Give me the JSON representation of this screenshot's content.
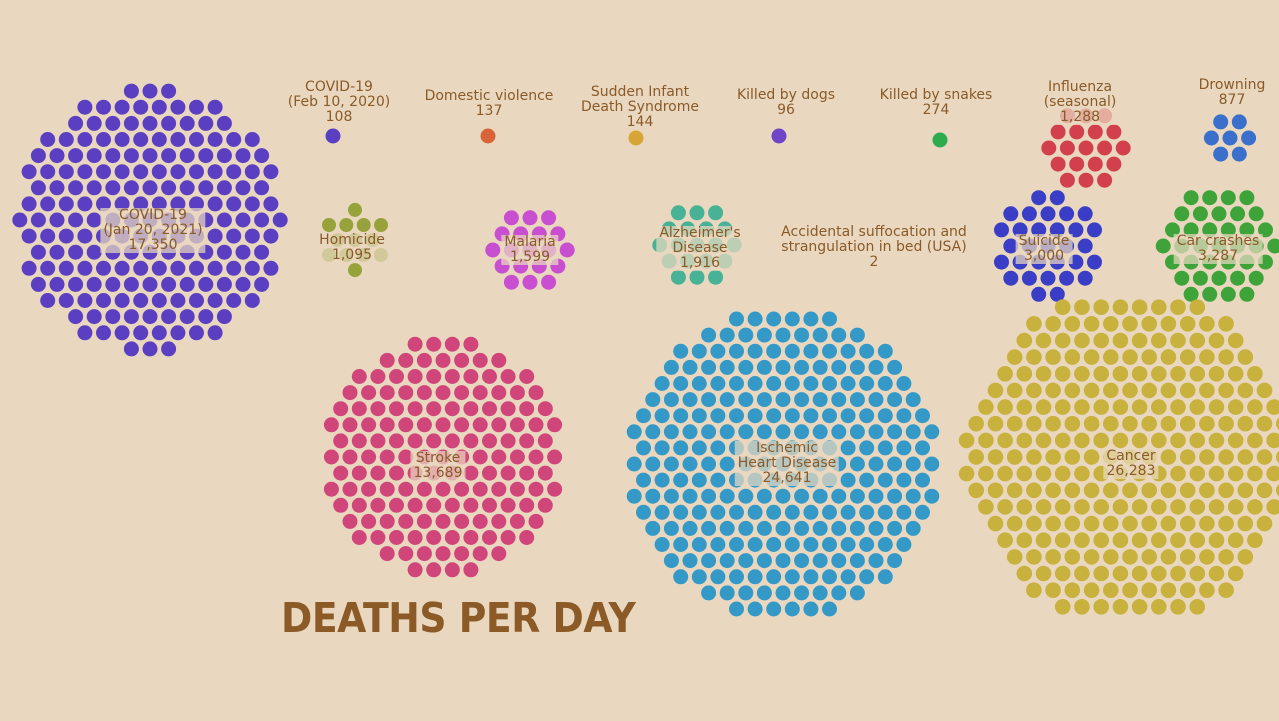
{
  "title": "DEATHS PER DAY",
  "colors": {
    "background": "#e9d8bf",
    "text": "#8a5a28",
    "title": "#8b5a26"
  },
  "chart_data": {
    "type": "packed-circle pictogram",
    "title": "DEATHS PER DAY",
    "categories": [
      {
        "key": "covid2021",
        "label": "COVID-19\n(Jan 20, 2021)",
        "value_label": "17,350",
        "value": 17350,
        "color": "#5b3fc2"
      },
      {
        "key": "covid2020",
        "label": "COVID-19\n(Feb 10, 2020)",
        "value_label": "108",
        "value": 108,
        "color": "#5b3fc2"
      },
      {
        "key": "domestic",
        "label": "Domestic violence",
        "value_label": "137",
        "value": 137,
        "color": "#d9643a"
      },
      {
        "key": "sids",
        "label": "Sudden Infant\nDeath Syndrome",
        "value_label": "144",
        "value": 144,
        "color": "#d7a535"
      },
      {
        "key": "dogs",
        "label": "Killed by dogs",
        "value_label": "96",
        "value": 96,
        "color": "#6d45c6"
      },
      {
        "key": "snakes",
        "label": "Killed by snakes",
        "value_label": "274",
        "value": 274,
        "color": "#2eab4d"
      },
      {
        "key": "influenza",
        "label": "Influenza\n(seasonal)",
        "value_label": "1,288",
        "value": 1288,
        "color": "#d2404e"
      },
      {
        "key": "drowning",
        "label": "Drowning",
        "value_label": "877",
        "value": 877,
        "color": "#3a6fcb"
      },
      {
        "key": "homicide",
        "label": "Homicide",
        "value_label": "1,095",
        "value": 1095,
        "color": "#97a33a"
      },
      {
        "key": "malaria",
        "label": "Malaria",
        "value_label": "1,599",
        "value": 1599,
        "color": "#c84fcf"
      },
      {
        "key": "alzheimers",
        "label": "Alzheimer's\nDisease",
        "value_label": "1,916",
        "value": 1916,
        "color": "#2bab8e"
      },
      {
        "key": "suffocation",
        "label": "Accidental suffocation and\nstrangulation in bed (USA)",
        "value_label": "2",
        "value": 2,
        "color": "#8a5a28"
      },
      {
        "key": "suicide",
        "label": "Suicide",
        "value_label": "3,000",
        "value": 3000,
        "color": "#3a3ec7"
      },
      {
        "key": "carcrashes",
        "label": "Car crashes",
        "value_label": "3,287",
        "value": 3287,
        "color": "#3ea43a"
      },
      {
        "key": "stroke",
        "label": "Stroke",
        "value_label": "13,689",
        "value": 13689,
        "color": "#d0467a"
      },
      {
        "key": "heart",
        "label": "Ischemic\nHeart Disease",
        "value_label": "24,641",
        "value": 24641,
        "color": "#3599c8"
      },
      {
        "key": "cancer",
        "label": "Cancer",
        "value_label": "26,283",
        "value": 26283,
        "color": "#c8b23d"
      }
    ]
  }
}
